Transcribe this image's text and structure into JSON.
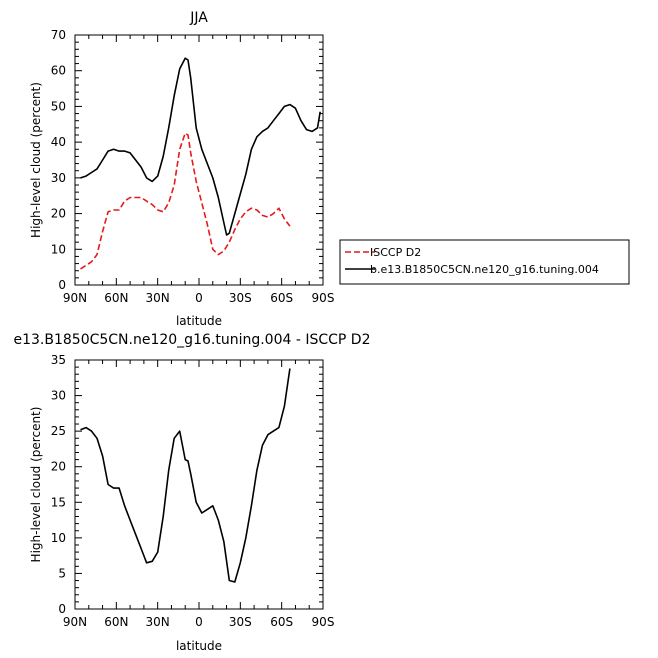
{
  "colors": {
    "model": "#000000",
    "obs": "#e41a1c"
  },
  "chart_data": [
    {
      "type": "line",
      "title": "JJA",
      "xlabel": "latitude",
      "ylabel": "High-level cloud (percent)",
      "xlim": [
        90,
        -90
      ],
      "ylim": [
        0,
        70
      ],
      "x_ticks": [
        90,
        60,
        30,
        0,
        -30,
        -60,
        -90
      ],
      "x_tick_labels": [
        "90N",
        "60N",
        "30N",
        "0",
        "30S",
        "60S",
        "90S"
      ],
      "y_ticks": [
        0,
        10,
        20,
        30,
        40,
        50,
        60,
        70
      ],
      "legend": {
        "position": "right",
        "entries": [
          "ISCCP D2",
          "b.e13.B1850C5CN.ne120_g16.tuning.004"
        ]
      },
      "series": [
        {
          "name": "ISCCP D2",
          "style": "dashed",
          "color": "#e41a1c",
          "x": [
            86,
            82,
            78,
            74,
            70,
            66,
            62,
            58,
            54,
            50,
            46,
            42,
            38,
            34,
            30,
            26,
            22,
            18,
            14,
            10,
            8,
            6,
            2,
            -2,
            -6,
            -10,
            -14,
            -18,
            -22,
            -26,
            -30,
            -34,
            -38,
            -42,
            -46,
            -50,
            -54,
            -58,
            -62,
            -66
          ],
          "y": [
            4.5,
            5.5,
            6.5,
            8.5,
            15,
            20.5,
            21,
            21,
            23.5,
            24.5,
            24.5,
            24.5,
            23.5,
            22.5,
            21,
            20.5,
            23,
            28,
            38,
            42.5,
            42,
            37,
            29,
            23,
            17,
            10,
            8.5,
            9.5,
            12,
            15.5,
            18.5,
            20.5,
            21.5,
            21,
            19.5,
            19,
            20,
            21.5,
            18.5,
            16.5
          ]
        },
        {
          "name": "b.e13.B1850C5CN.ne120_g16.tuning.004",
          "style": "solid",
          "color": "#000000",
          "x": [
            86,
            82,
            78,
            74,
            70,
            66,
            62,
            58,
            54,
            50,
            46,
            42,
            38,
            34,
            30,
            26,
            22,
            18,
            14,
            10,
            8,
            6,
            2,
            -2,
            -6,
            -10,
            -14,
            -18,
            -20,
            -22,
            -26,
            -30,
            -34,
            -38,
            -42,
            -46,
            -50,
            -54,
            -58,
            -62,
            -66,
            -70,
            -74,
            -78,
            -82,
            -86,
            -88
          ],
          "y": [
            30,
            30.5,
            31.5,
            32.5,
            35,
            37.5,
            38,
            37.5,
            37.5,
            37,
            35,
            33,
            30,
            29,
            30.5,
            36,
            44,
            53,
            60.5,
            63.5,
            63,
            58,
            44,
            38,
            34,
            30,
            24.5,
            17.5,
            14,
            14.5,
            20,
            25.5,
            31,
            38,
            41.5,
            43,
            44,
            46,
            48,
            50,
            50.5,
            49.5,
            46,
            43.5,
            43,
            44,
            48.5
          ]
        }
      ]
    },
    {
      "type": "line",
      "title": "e13.B1850C5CN.ne120_g16.tuning.004 - ISCCP D2",
      "xlabel": "latitude",
      "ylabel": "High-level cloud (percent)",
      "xlim": [
        90,
        -90
      ],
      "ylim": [
        0,
        35
      ],
      "x_ticks": [
        90,
        60,
        30,
        0,
        -30,
        -60,
        -90
      ],
      "x_tick_labels": [
        "90N",
        "60N",
        "30N",
        "0",
        "30S",
        "60S",
        "90S"
      ],
      "y_ticks": [
        0,
        5,
        10,
        15,
        20,
        25,
        30,
        35
      ],
      "series": [
        {
          "style": "solid",
          "color": "#000000",
          "x": [
            86,
            82,
            78,
            74,
            70,
            66,
            62,
            58,
            54,
            50,
            46,
            42,
            38,
            34,
            30,
            26,
            22,
            18,
            14,
            10,
            8,
            6,
            2,
            -2,
            -6,
            -10,
            -14,
            -18,
            -22,
            -26,
            -30,
            -34,
            -38,
            -42,
            -46,
            -50,
            -54,
            -58,
            -62,
            -66
          ],
          "y": [
            25.2,
            25.5,
            25,
            24,
            21.5,
            17.5,
            17,
            17,
            14.5,
            12.5,
            10.5,
            8.5,
            6.5,
            6.7,
            8,
            13,
            19.5,
            24,
            25,
            21,
            20.8,
            19,
            15,
            13.5,
            14,
            14.5,
            12.5,
            9.5,
            4,
            3.8,
            6.5,
            10,
            14.5,
            19.5,
            23,
            24.5,
            25,
            25.5,
            28.5,
            33.8
          ]
        }
      ]
    }
  ]
}
